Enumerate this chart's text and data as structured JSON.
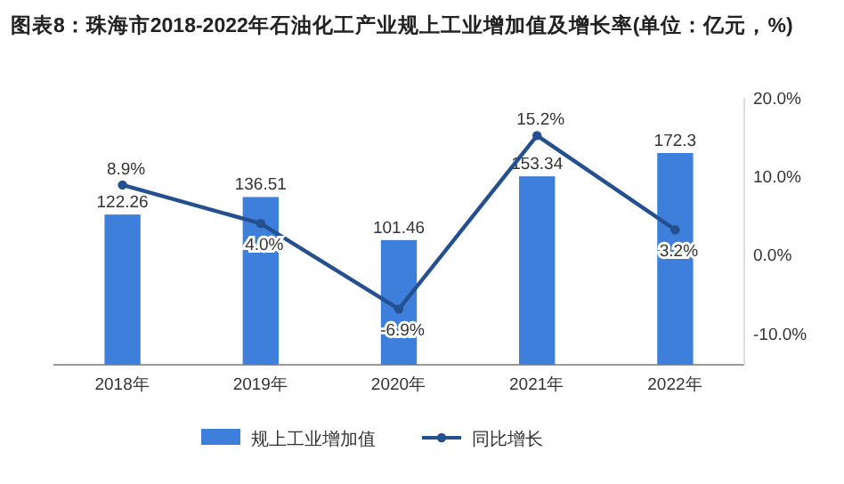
{
  "chart_data": {
    "type": "bar",
    "title": "图表8：珠海市2018-2022年石油化工产业规上工业增加值及增长率(单位：亿元，%)",
    "categories": [
      "2018年",
      "2019年",
      "2020年",
      "2021年",
      "2022年"
    ],
    "series": [
      {
        "name": "规上工业增加值",
        "color": "#3d7fdb",
        "values": [
          122.26,
          136.51,
          101.46,
          153.34,
          172.3
        ]
      },
      {
        "type": "line",
        "name": "同比增长",
        "color": "#24508f",
        "axis": "y2",
        "marker": "circle",
        "values": [
          8.9,
          4.0,
          -6.9,
          15.2,
          3.2
        ],
        "value_labels": [
          "8.9%",
          "4.0%",
          "-6.9%",
          "15.2%",
          "3.2%"
        ]
      }
    ],
    "data_labels": true,
    "y2lim": [
      -14,
      20
    ],
    "y2ticks": [
      {
        "value": 20,
        "label": "20.0%"
      },
      {
        "value": 10,
        "label": "10.0%"
      },
      {
        "value": 0,
        "label": "0.0%"
      },
      {
        "value": -10,
        "label": "-10.0%"
      }
    ],
    "legend": "bottom"
  }
}
